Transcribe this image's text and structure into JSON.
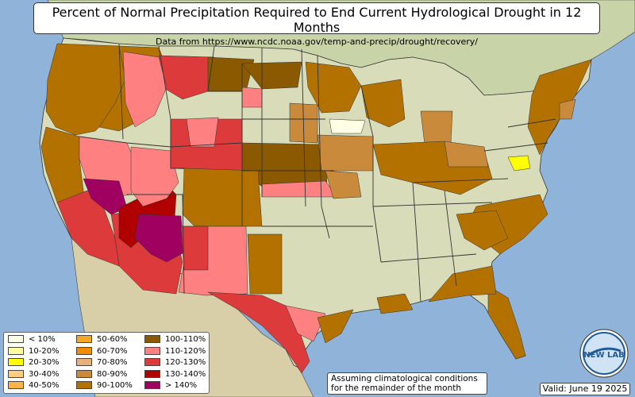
{
  "title": "Percent of Normal Precipitation Required to End Current Hydrological Drought in 12 Months",
  "subtitle": "Data from https://www.ncdc.noaa.gov/temp-and-precip/drought/recovery/",
  "note_line1": "Assuming climatological conditions",
  "note_line2": "for the remainder of the month",
  "valid": "Valid: June 19 2025",
  "logo_text": "NEW LAB",
  "colors": {
    "ocean": "#8fb3d9",
    "land": "#d9dcb8",
    "land_north": "#c8d3a8",
    "mexico": "#d8cfa8",
    "border": "#333333"
  },
  "legend": [
    {
      "label": "< 10%",
      "color": "#ffffe6"
    },
    {
      "label": "10-20%",
      "color": "#ffffa0"
    },
    {
      "label": "20-30%",
      "color": "#ffff00"
    },
    {
      "label": "30-40%",
      "color": "#ffcc80"
    },
    {
      "label": "40-50%",
      "color": "#ffb347"
    },
    {
      "label": "50-60%",
      "color": "#f5a623"
    },
    {
      "label": "60-70%",
      "color": "#f08c00"
    },
    {
      "label": "70-80%",
      "color": "#e8b07a"
    },
    {
      "label": "80-90%",
      "color": "#c98a3c"
    },
    {
      "label": "90-100%",
      "color": "#b37200"
    },
    {
      "label": "100-110%",
      "color": "#8b5a00"
    },
    {
      "label": "110-120%",
      "color": "#ff8080"
    },
    {
      "label": "120-130%",
      "color": "#dd3b3b"
    },
    {
      "label": "130-140%",
      "color": "#b00000"
    },
    {
      "label": "> 140%",
      "color": "#a00060"
    }
  ]
}
